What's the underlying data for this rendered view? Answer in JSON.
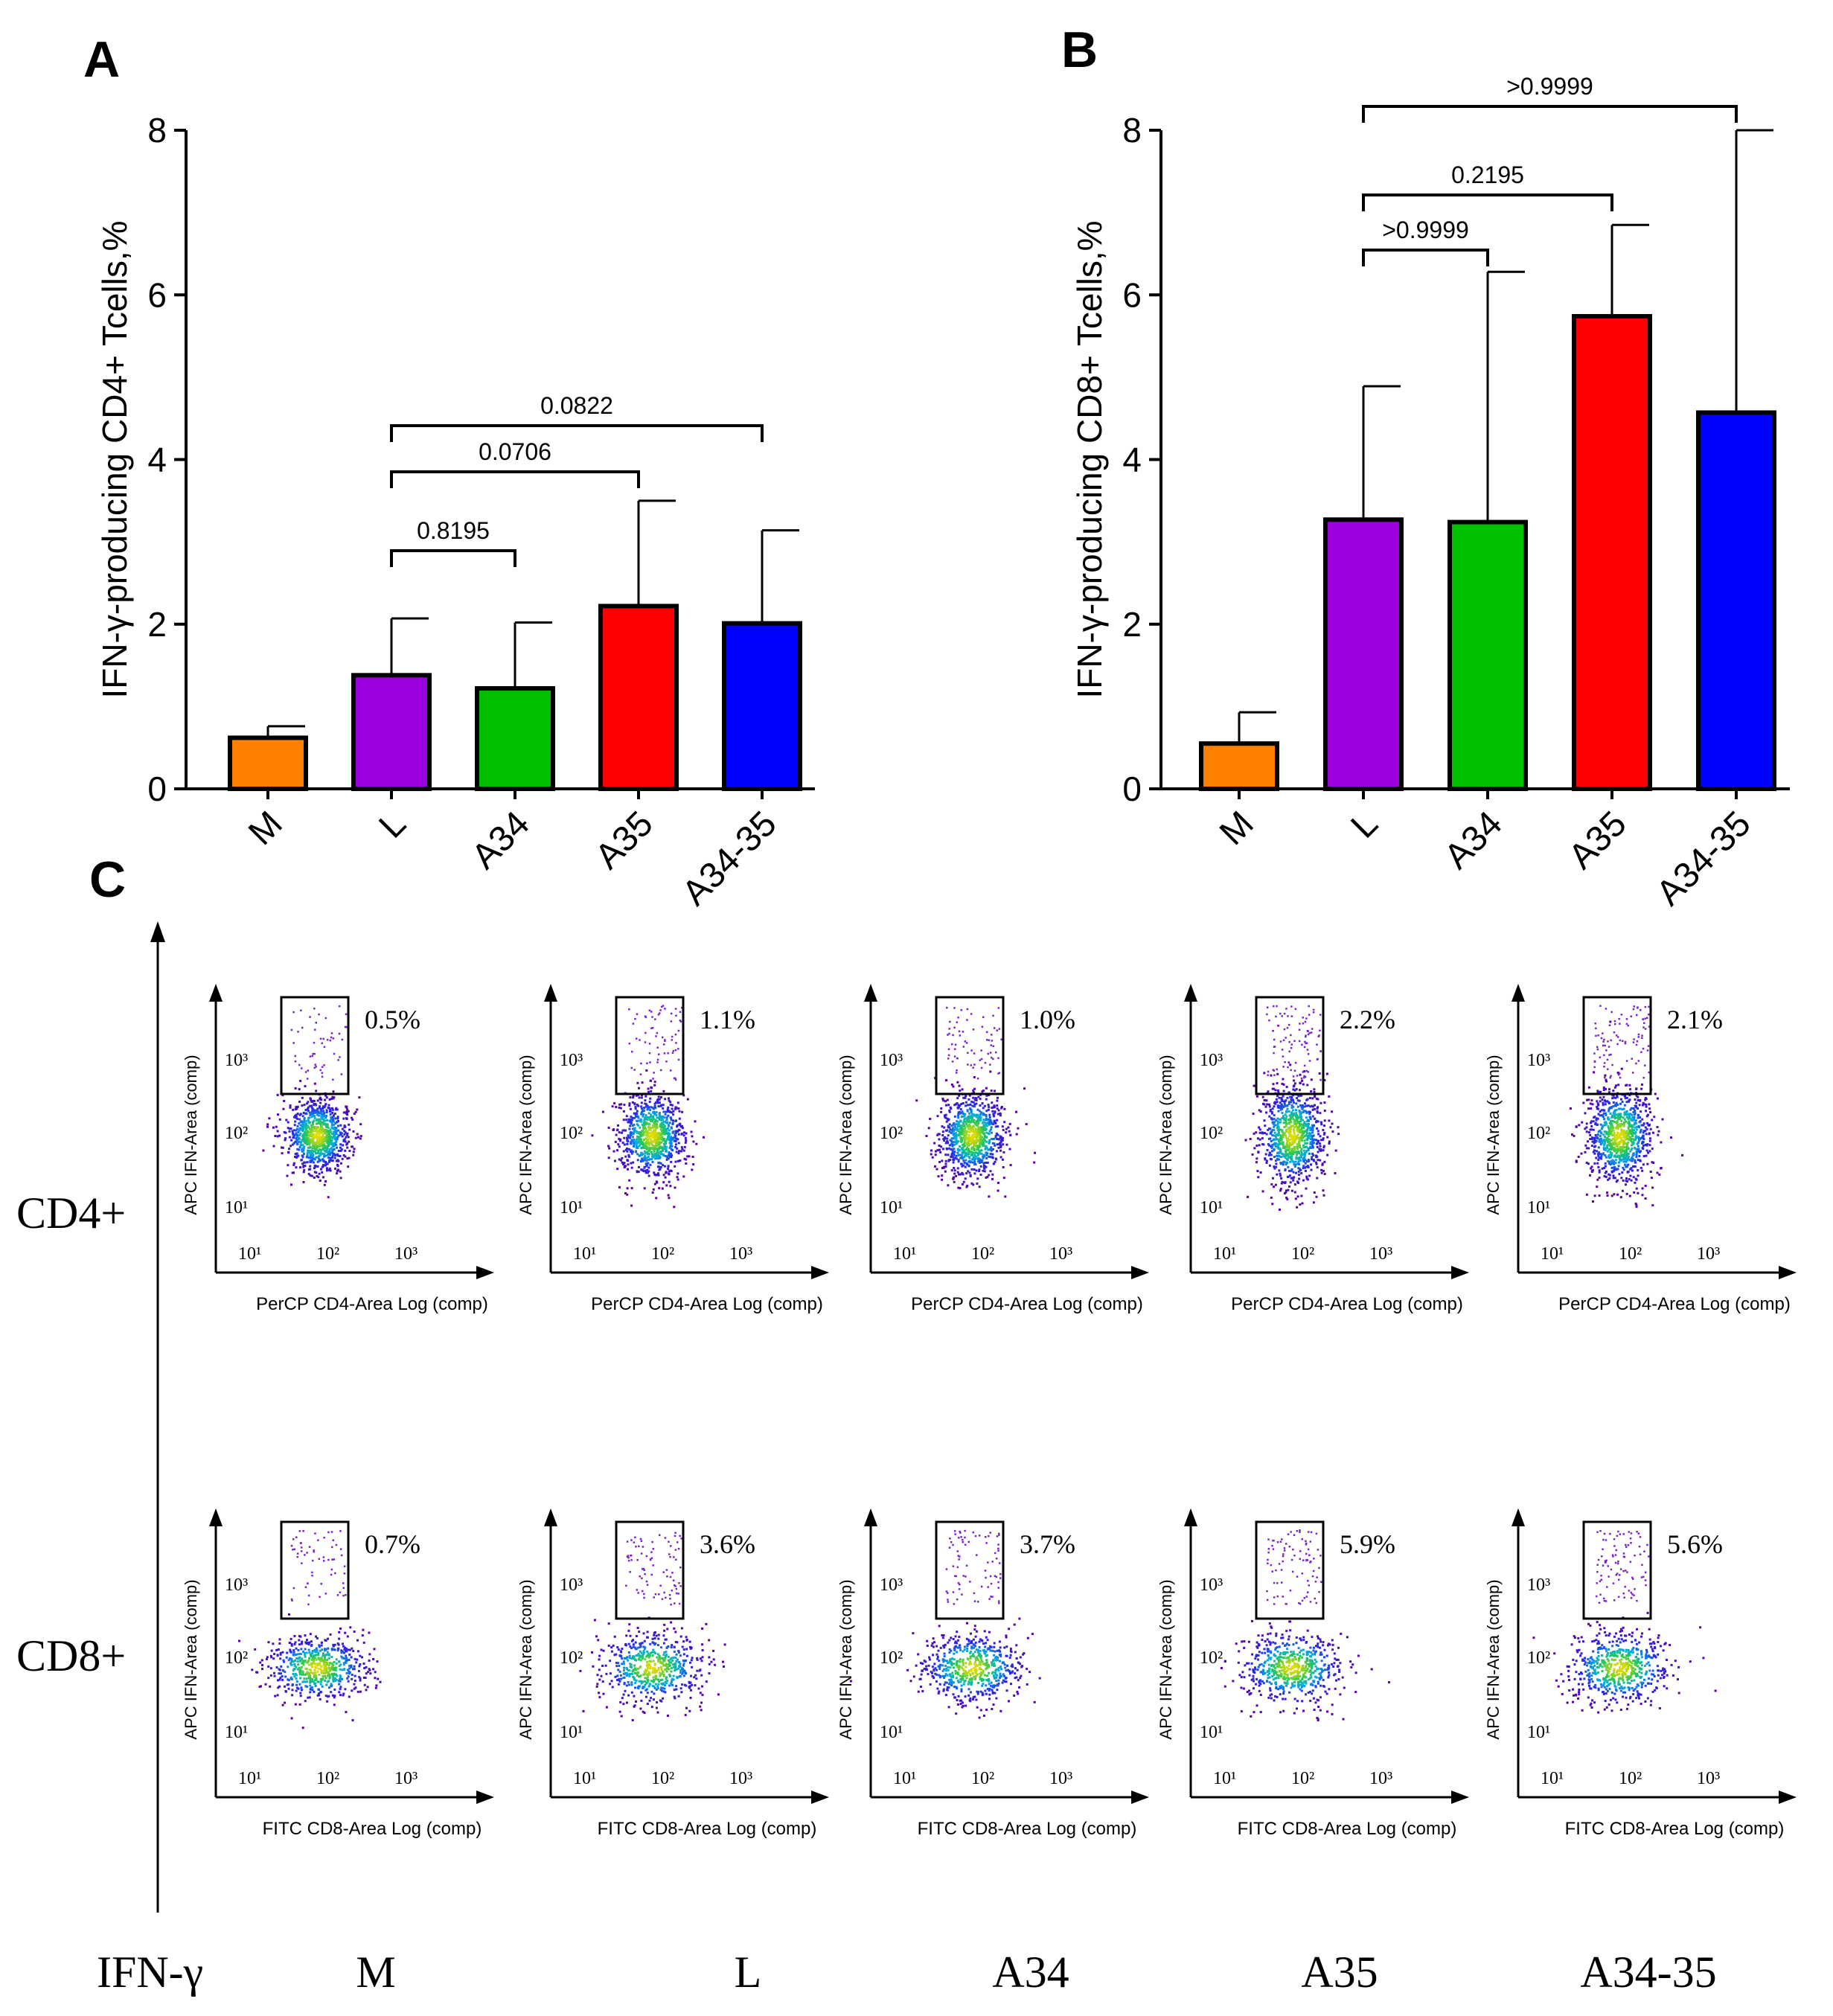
{
  "chart_data": [
    {
      "panel": "A",
      "type": "bar",
      "title": "",
      "xlabel": "",
      "ylabel": "IFN-γ-producing CD4+ Tcells,%",
      "ylim": [
        0,
        8
      ],
      "yticks": [
        "0",
        "2",
        "4",
        "6",
        "8"
      ],
      "categories": [
        "M",
        "L",
        "A34",
        "A35",
        "A34-35"
      ],
      "values": [
        0.62,
        1.38,
        1.22,
        2.22,
        2.01
      ],
      "errors": [
        0.14,
        0.69,
        0.8,
        1.28,
        1.13
      ],
      "colors": [
        "#ff7f00",
        "#9b00e0",
        "#00c000",
        "#ff0000",
        "#0000ff"
      ],
      "comparisons": [
        {
          "from": 1,
          "to": 2,
          "label": "0.8195"
        },
        {
          "from": 1,
          "to": 3,
          "label": "0.0706"
        },
        {
          "from": 1,
          "to": 4,
          "label": "0.0822"
        }
      ]
    },
    {
      "panel": "B",
      "type": "bar",
      "title": "",
      "xlabel": "",
      "ylabel": "IFN-γ-producing CD8+ Tcells,%",
      "ylim": [
        0,
        8
      ],
      "yticks": [
        "0",
        "2",
        "4",
        "6",
        "8"
      ],
      "categories": [
        "M",
        "L",
        "A34",
        "A35",
        "A34-35"
      ],
      "values": [
        0.55,
        3.27,
        3.24,
        5.74,
        4.57
      ],
      "errors": [
        0.38,
        1.62,
        3.04,
        1.11,
        3.43
      ],
      "colors": [
        "#ff7f00",
        "#9b00e0",
        "#00c000",
        "#ff0000",
        "#0000ff"
      ],
      "comparisons": [
        {
          "from": 1,
          "to": 2,
          "label": ">0.9999"
        },
        {
          "from": 1,
          "to": 3,
          "label": "0.2195"
        },
        {
          "from": 1,
          "to": 4,
          "label": ">0.9999"
        }
      ]
    }
  ],
  "panel_c": {
    "rows": [
      {
        "label": "CD4+",
        "y_axis_label": "APC IFN-Area  (comp)",
        "x_axis_label": "PerCP CD4-Area  Log (comp)",
        "gate_percents": [
          "0.5%",
          "1.1%",
          "1.0%",
          "2.2%",
          "2.1%"
        ]
      },
      {
        "label": "CD8+",
        "y_axis_label": "APC IFN-Area  (comp)",
        "x_axis_label": "FITC CD8-Area  Log (comp)",
        "gate_percents": [
          "0.7%",
          "3.6%",
          "3.7%",
          "5.9%",
          "5.6%"
        ]
      }
    ],
    "tick_labels": [
      "10¹",
      "10²",
      "10³"
    ],
    "axis_caption": "IFN-γ",
    "columns": [
      "M",
      "L",
      "A34",
      "A35",
      "A34-35"
    ]
  },
  "panel_letters": {
    "a": "A",
    "b": "B",
    "c": "C"
  },
  "colors": {
    "orange": "#ff7f00",
    "purple": "#9b00e0",
    "green": "#00c000",
    "red": "#ff0000",
    "blue": "#0000ff",
    "axis": "#000000"
  }
}
